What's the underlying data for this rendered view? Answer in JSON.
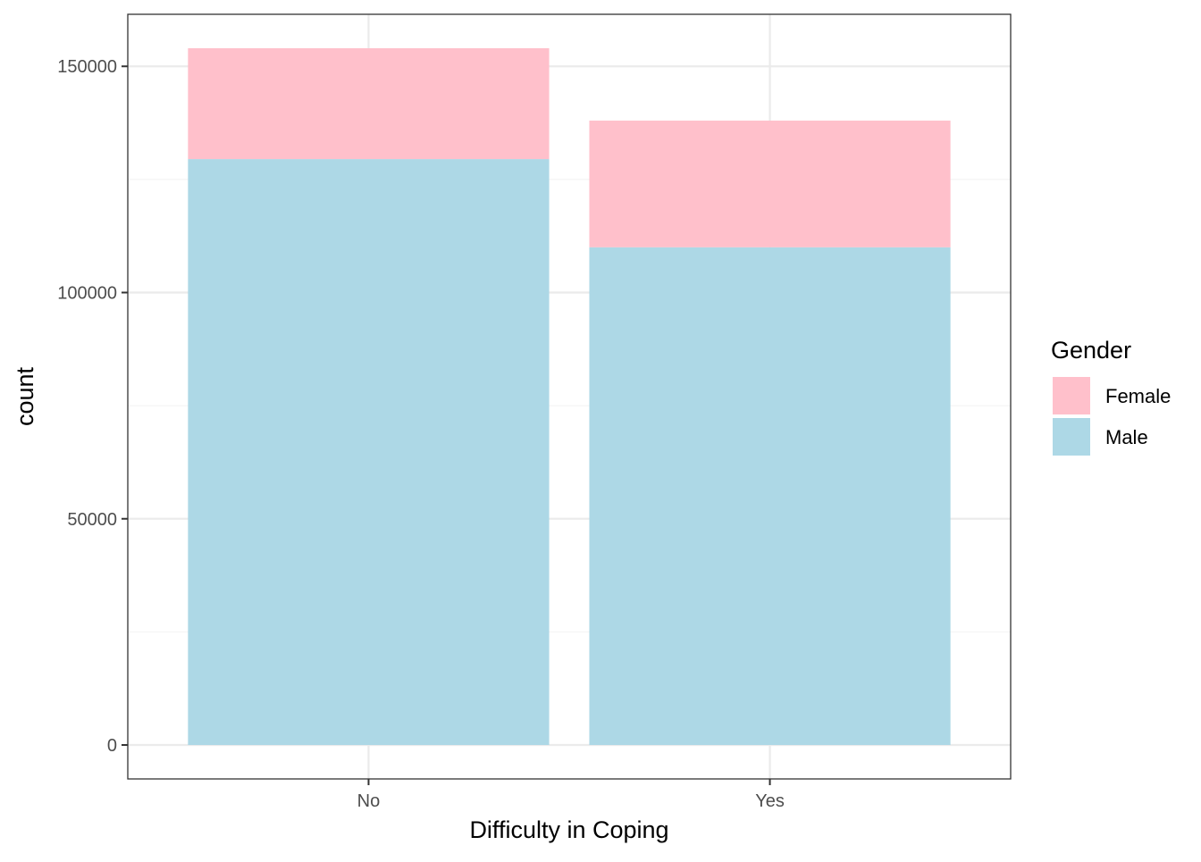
{
  "chart_data": {
    "type": "bar",
    "stacked": true,
    "title": "",
    "xlabel": "Difficulty in Coping",
    "ylabel": "count",
    "categories": [
      "No",
      "Yes"
    ],
    "series": [
      {
        "name": "Male",
        "values": [
          129500,
          110000
        ],
        "color": "#add8e6"
      },
      {
        "name": "Female",
        "values": [
          24500,
          28000
        ],
        "color": "#ffc0cb"
      }
    ],
    "ylim": [
      -7500,
      161500
    ],
    "y_ticks": [
      0,
      50000,
      100000,
      150000
    ],
    "y_tick_labels": [
      "0",
      "50000",
      "100000",
      "150000"
    ],
    "y_minor_ticks": [
      25000,
      75000,
      125000
    ],
    "grid": true,
    "legend": {
      "title": "Gender",
      "placement": "right",
      "entries": [
        {
          "label": "Female",
          "color": "#ffc0cb"
        },
        {
          "label": "Male",
          "color": "#add8e6"
        }
      ]
    }
  }
}
